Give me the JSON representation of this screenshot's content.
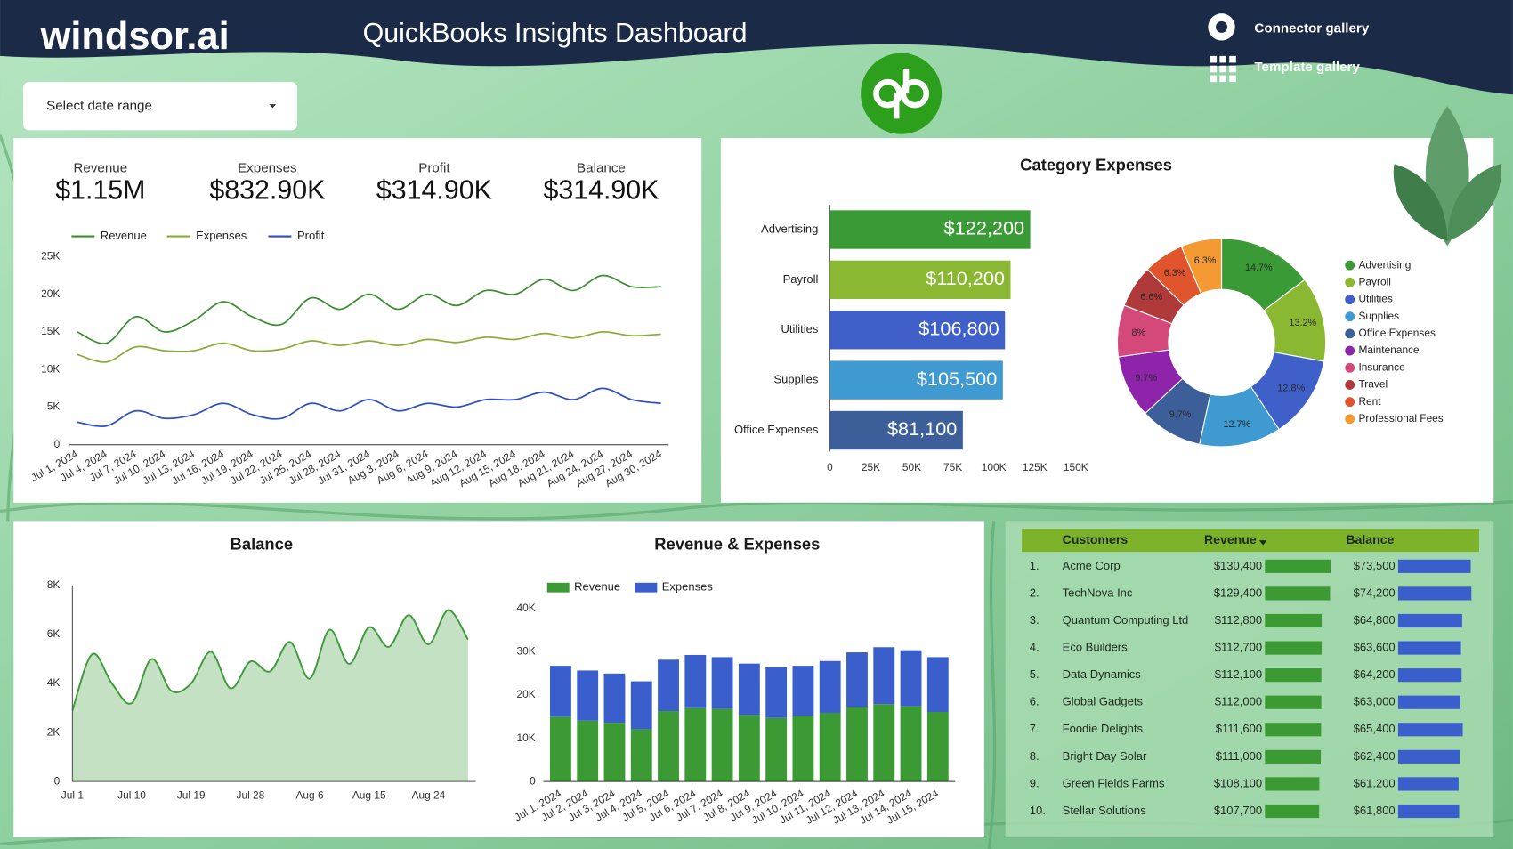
{
  "header": {
    "brand": "windsor.ai",
    "title": "QuickBooks Insights Dashboard",
    "links": [
      "Connector gallery",
      "Template gallery"
    ],
    "date_picker": "Select date range"
  },
  "kpis": [
    {
      "label": "Revenue",
      "value": "$1.15M"
    },
    {
      "label": "Expenses",
      "value": "$832.90K"
    },
    {
      "label": "Profit",
      "value": "$314.90K"
    },
    {
      "label": "Balance",
      "value": "$314.90K"
    }
  ],
  "chart_data": [
    {
      "type": "line",
      "categories": [
        "Jul 1, 2024",
        "Jul 4, 2024",
        "Jul 7, 2024",
        "Jul 10, 2024",
        "Jul 13, 2024",
        "Jul 16, 2024",
        "Jul 19, 2024",
        "Jul 22, 2024",
        "Jul 25, 2024",
        "Jul 28, 2024",
        "Jul 31, 2024",
        "Aug 3, 2024",
        "Aug 6, 2024",
        "Aug 9, 2024",
        "Aug 12, 2024",
        "Aug 15, 2024",
        "Aug 18, 2024",
        "Aug 21, 2024",
        "Aug 24, 2024",
        "Aug 27, 2024",
        "Aug 30, 2024"
      ],
      "series": [
        {
          "name": "Revenue",
          "color": "#3a8f2e",
          "values": [
            15000,
            13500,
            17000,
            15000,
            16500,
            19000,
            17000,
            16000,
            19500,
            18000,
            20000,
            18000,
            20000,
            18500,
            20500,
            20000,
            22000,
            20500,
            22500,
            21000,
            21000
          ]
        },
        {
          "name": "Expenses",
          "color": "#8aae35",
          "values": [
            12000,
            11000,
            13000,
            12500,
            12500,
            13500,
            12500,
            12700,
            13800,
            13200,
            13800,
            13200,
            14000,
            13600,
            14300,
            14000,
            14800,
            14200,
            15000,
            14500,
            14700
          ]
        },
        {
          "name": "Profit",
          "color": "#2f4fc4",
          "values": [
            3000,
            2500,
            4500,
            3500,
            4000,
            5500,
            4000,
            3500,
            5500,
            4500,
            6000,
            4500,
            5500,
            5000,
            6000,
            6000,
            7000,
            6000,
            7500,
            6000,
            5500
          ]
        }
      ],
      "ylim": [
        0,
        25000
      ],
      "yticks": [
        0,
        {
          "value": 5000,
          "label": "5K"
        },
        {
          "value": 10000,
          "label": "10K"
        },
        {
          "value": 15000,
          "label": "15K"
        },
        {
          "value": 20000,
          "label": "20K"
        },
        {
          "value": 25000,
          "label": "25K"
        }
      ],
      "legend": "top"
    },
    {
      "type": "bar",
      "orientation": "horizontal",
      "title": "Category Expenses",
      "categories": [
        "Advertising",
        "Payroll",
        "Utilities",
        "Supplies",
        "Office Expenses"
      ],
      "values": [
        122200,
        110200,
        106800,
        105500,
        81100
      ],
      "value_labels": [
        "$122,200",
        "$110,200",
        "$106,800",
        "$105,500",
        "$81,100"
      ],
      "colors": [
        "#3a9a35",
        "#8ab832",
        "#3f5fc9",
        "#3e9ad0",
        "#3c5f9a"
      ],
      "xlim": [
        0,
        150000
      ],
      "xticks": [
        0,
        {
          "value": 25000,
          "label": "25K"
        },
        {
          "value": 50000,
          "label": "50K"
        },
        {
          "value": 75000,
          "label": "75K"
        },
        {
          "value": 100000,
          "label": "100K"
        },
        {
          "value": 125000,
          "label": "125K"
        },
        {
          "value": 150000,
          "label": "150K"
        }
      ]
    },
    {
      "type": "donut",
      "categories": [
        "Advertising",
        "Payroll",
        "Utilities",
        "Supplies",
        "Office Expenses",
        "Maintenance",
        "Insurance",
        "Travel",
        "Rent",
        "Professional Fees"
      ],
      "values": [
        14.7,
        13.2,
        12.8,
        12.7,
        9.7,
        9.7,
        8,
        6.6,
        6.3,
        6.3
      ],
      "value_labels": [
        "14.7%",
        "13.2%",
        "12.8%",
        "12.7%",
        "9.7%",
        "9.7%",
        "8%",
        "6.6%",
        "6.3%",
        "6.3%"
      ],
      "colors": [
        "#3a9a35",
        "#8ab832",
        "#3f5fc9",
        "#3e9ad0",
        "#3c5f9a",
        "#8e24aa",
        "#d4487a",
        "#b03a3a",
        "#e0542e",
        "#f59a32"
      ],
      "legend": "right"
    },
    {
      "type": "area",
      "title": "Balance",
      "categories": [
        "Jul 1",
        null,
        null,
        "Jul 10",
        null,
        null,
        "Jul 19",
        null,
        null,
        "Jul 28",
        null,
        null,
        "Aug 6",
        null,
        null,
        "Aug 15",
        null,
        null,
        "Aug 24",
        null,
        null
      ],
      "values": [
        2900,
        5200,
        4000,
        3200,
        5000,
        3700,
        4000,
        5300,
        3800,
        4900,
        4500,
        5700,
        4200,
        6200,
        4800,
        6300,
        5500,
        6800,
        5600,
        7000,
        5800
      ],
      "color": "#3f9a3a",
      "ylim": [
        0,
        8000
      ],
      "yticks": [
        0,
        {
          "value": 2000,
          "label": "2K"
        },
        {
          "value": 4000,
          "label": "4K"
        },
        {
          "value": 6000,
          "label": "6K"
        },
        {
          "value": 8000,
          "label": "8K"
        }
      ]
    },
    {
      "type": "stacked_bar",
      "title": "Revenue & Expenses",
      "categories": [
        "Jul 1, 2024",
        "Jul 2, 2024",
        "Jul 3, 2024",
        "Jul 4, 2024",
        "Jul 5, 2024",
        "Jul 6, 2024",
        "Jul 7, 2024",
        "Jul 8, 2024",
        "Jul 9, 2024",
        "Jul 10, 2024",
        "Jul 11, 2024",
        "Jul 12, 2024",
        "Jul 13, 2024",
        "Jul 14, 2024",
        "Jul 15, 2024"
      ],
      "series": [
        {
          "name": "Revenue",
          "color": "#3c9a34",
          "values": [
            15000,
            14100,
            13600,
            12100,
            16300,
            17000,
            16800,
            15400,
            14700,
            15200,
            15900,
            17200,
            17900,
            17400,
            16100
          ]
        },
        {
          "name": "Expenses",
          "color": "#3a5fcd",
          "values": [
            11800,
            11600,
            11400,
            11100,
            11900,
            12300,
            12000,
            11900,
            11700,
            11600,
            12000,
            12700,
            13200,
            13000,
            12700
          ]
        }
      ],
      "ylim": [
        0,
        40000
      ],
      "yticks": [
        0,
        {
          "value": 10000,
          "label": "10K"
        },
        {
          "value": 20000,
          "label": "20K"
        },
        {
          "value": 30000,
          "label": "30K"
        },
        {
          "value": 40000,
          "label": "40K"
        }
      ],
      "legend": "top"
    }
  ],
  "table": {
    "columns": [
      "Customers",
      "Revenue",
      "Balance"
    ],
    "rows": [
      [
        "1.",
        "Acme Corp",
        "$130,400",
        "$73,500"
      ],
      [
        "2.",
        "TechNova Inc",
        "$129,400",
        "$74,200"
      ],
      [
        "3.",
        "Quantum Computing Ltd",
        "$112,800",
        "$64,800"
      ],
      [
        "4.",
        "Eco Builders",
        "$112,700",
        "$63,600"
      ],
      [
        "5.",
        "Data Dynamics",
        "$112,100",
        "$64,200"
      ],
      [
        "6.",
        "Global Gadgets",
        "$112,000",
        "$63,000"
      ],
      [
        "7.",
        "Foodie Delights",
        "$111,600",
        "$65,400"
      ],
      [
        "8.",
        "Bright Day Solar",
        "$111,000",
        "$62,400"
      ],
      [
        "9.",
        "Green Fields Farms",
        "$108,100",
        "$61,200"
      ],
      [
        "10.",
        "Stellar Solutions",
        "$107,700",
        "$61,800"
      ]
    ],
    "revenue_values": [
      130400,
      129400,
      112800,
      112700,
      112100,
      112000,
      111600,
      111000,
      108100,
      107700
    ],
    "balance_values": [
      73500,
      74200,
      64800,
      63600,
      64200,
      63000,
      65400,
      62400,
      61200,
      61800
    ]
  }
}
